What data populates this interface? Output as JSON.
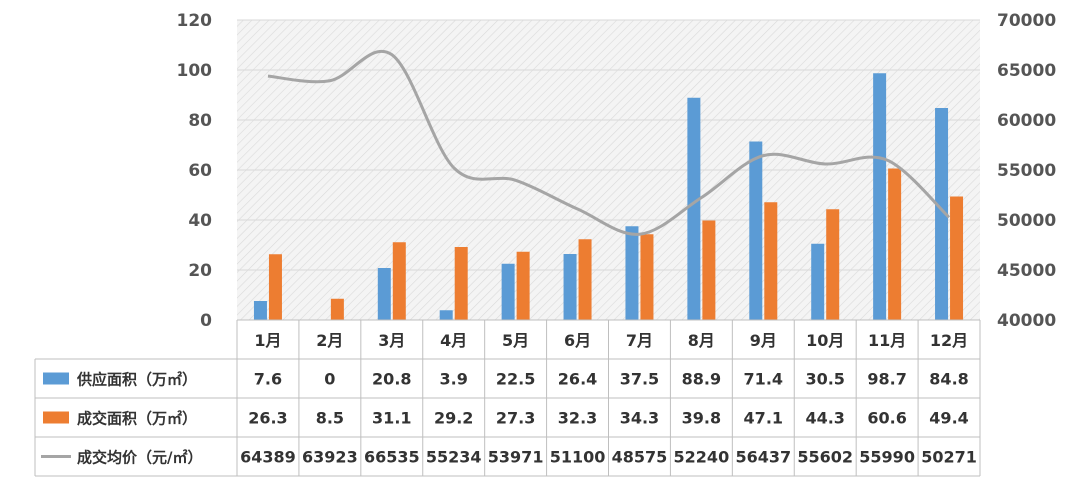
{
  "chart_data": {
    "type": "bar",
    "categories": [
      "1月",
      "2月",
      "3月",
      "4月",
      "5月",
      "6月",
      "7月",
      "8月",
      "9月",
      "10月",
      "11月",
      "12月"
    ],
    "series": [
      {
        "name": "供应面积（万㎡）",
        "kind": "bar",
        "axis": "left",
        "color": "#5b9bd5",
        "values": [
          7.6,
          0,
          20.8,
          3.9,
          22.5,
          26.4,
          37.5,
          88.9,
          71.4,
          30.5,
          98.7,
          84.8
        ]
      },
      {
        "name": "成交面积（万㎡）",
        "kind": "bar",
        "axis": "left",
        "color": "#ed7d31",
        "values": [
          26.3,
          8.5,
          31.1,
          29.2,
          27.3,
          32.3,
          34.3,
          39.8,
          47.1,
          44.3,
          60.6,
          49.4
        ]
      },
      {
        "name": "成交均价（元/㎡）",
        "kind": "line",
        "axis": "right",
        "color": "#a5a5a5",
        "values": [
          64389,
          63923,
          66535,
          55234,
          53971,
          51100,
          48575,
          52240,
          56437,
          55602,
          55990,
          50271
        ]
      }
    ],
    "y_left": {
      "min": 0,
      "max": 120,
      "ticks": [
        0,
        20,
        40,
        60,
        80,
        100,
        120
      ]
    },
    "y_right": {
      "min": 40000,
      "max": 70000,
      "ticks": [
        40000,
        45000,
        50000,
        55000,
        60000,
        65000,
        70000
      ]
    },
    "grid": true,
    "data_table": true
  }
}
